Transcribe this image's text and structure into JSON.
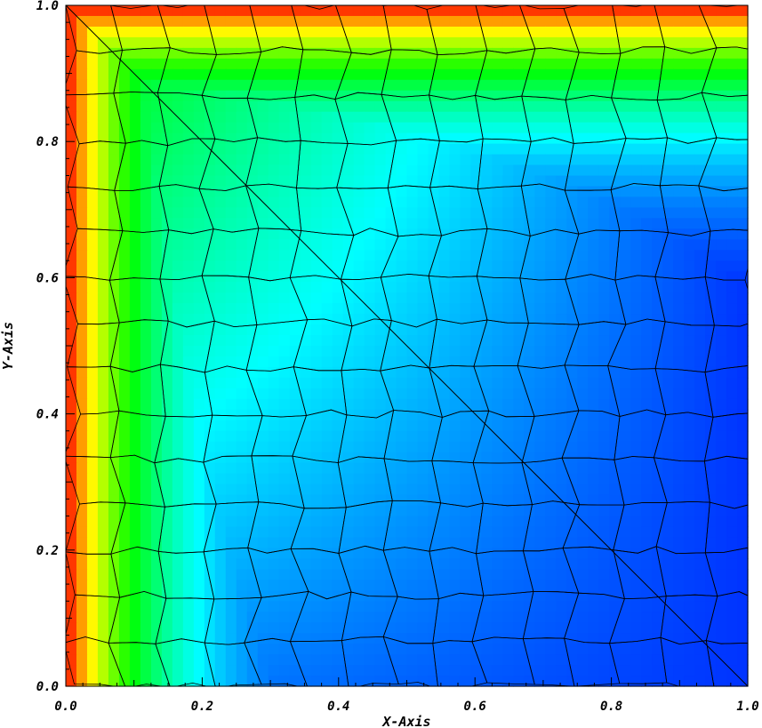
{
  "chart_data": {
    "type": "heatmap",
    "title": "",
    "xlabel": "X-Axis",
    "ylabel": "Y-Axis",
    "xlim": [
      0.0,
      1.0
    ],
    "ylim": [
      0.0,
      1.0
    ],
    "x_ticks": [
      0.0,
      0.2,
      0.4,
      0.6,
      0.8,
      1.0
    ],
    "y_ticks": [
      0.0,
      0.2,
      0.4,
      0.6,
      0.8,
      1.0
    ],
    "x_tick_labels": [
      "0.0",
      "0.2",
      "0.4",
      "0.6",
      "0.8",
      "1.0"
    ],
    "y_tick_labels": [
      "0.0",
      "0.2",
      "0.4",
      "0.6",
      "0.8",
      "1.0"
    ],
    "grid": false,
    "legend": "none",
    "colormap": [
      "#ff0000",
      "#ffff00",
      "#00ff00",
      "#00ffff",
      "#0000ff"
    ],
    "field_description_values": {
      "min_color_at": [
        1.0,
        0.0
      ],
      "max_color_at": [
        [
          0.0,
          0.0
        ],
        [
          0.0,
          1.0
        ]
      ]
    },
    "mesh": "polygonal (voronoi-like) cells",
    "diagonal_line": {
      "from": [
        0.0,
        1.0
      ],
      "to": [
        1.0,
        0.0
      ]
    }
  }
}
